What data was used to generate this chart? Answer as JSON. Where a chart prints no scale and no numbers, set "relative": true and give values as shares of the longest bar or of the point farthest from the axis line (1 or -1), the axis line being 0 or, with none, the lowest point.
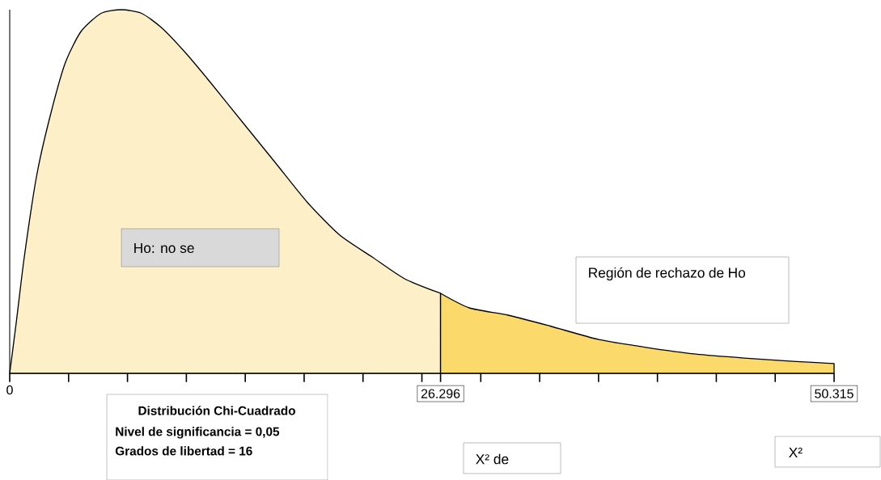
{
  "chart_data": {
    "type": "area",
    "relative": true,
    "xlim": [
      0,
      50.315
    ],
    "xticks": [
      0,
      {
        "value": 3.594,
        "label": null
      },
      {
        "value": 7.188,
        "label": null
      },
      {
        "value": 10.782,
        "label": null
      },
      {
        "value": 14.376,
        "label": null
      },
      {
        "value": 17.97,
        "label": null
      },
      {
        "value": 21.564,
        "label": null
      },
      {
        "value": 25.158,
        "label": null
      },
      26.296,
      {
        "value": 28.751,
        "label": null
      },
      {
        "value": 32.345,
        "label": null
      },
      {
        "value": 35.939,
        "label": null
      },
      {
        "value": 39.533,
        "label": null
      },
      {
        "value": 43.127,
        "label": null
      },
      {
        "value": 46.721,
        "label": null
      },
      50.315
    ],
    "series": [
      {
        "color": "#fdf0c8",
        "x": [
          0,
          0.4,
          0.89,
          1.63,
          2.37,
          3.36,
          4.35,
          5.58,
          6.81,
          8.05,
          9.28,
          10.76,
          12.25,
          14.22,
          16.2,
          18.17,
          20.15,
          22.12,
          24.1,
          26.296
        ],
        "values": [
          0,
          0.14,
          0.32,
          0.54,
          0.69,
          0.85,
          0.94,
          0.99,
          1,
          0.99,
          0.95,
          0.88,
          0.8,
          0.69,
          0.58,
          0.47,
          0.38,
          0.32,
          0.26,
          0.22
        ]
      },
      {
        "color": "#fcd96b",
        "x": [
          26.296,
          28.05,
          30.42,
          32.98,
          35.95,
          38.91,
          41.87,
          44.83,
          47.8,
          50.315
        ],
        "values": [
          0.22,
          0.18,
          0.16,
          0.13,
          0.093,
          0.071,
          0.053,
          0.042,
          0.033,
          0.027
        ]
      }
    ],
    "annotations": [
      "Ho: no se",
      "Región de rechazo de Ho",
      "Distribución Chi-Cuadrado",
      "Nivel de significancia  = 0,05",
      "Grados de libertad = 16",
      "X² de",
      "X²"
    ]
  }
}
